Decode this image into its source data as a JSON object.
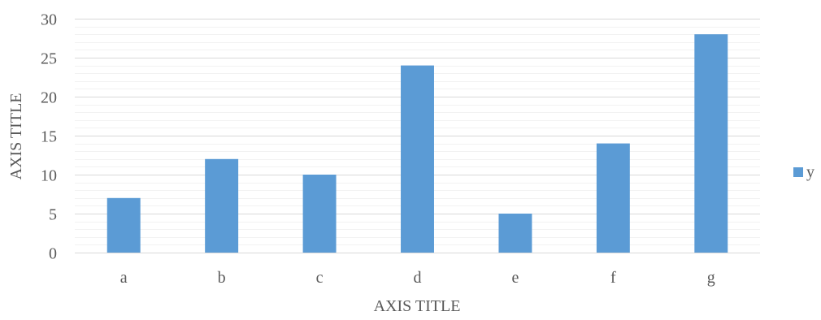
{
  "chart_data": {
    "type": "bar",
    "categories": [
      "a",
      "b",
      "c",
      "d",
      "e",
      "f",
      "g"
    ],
    "series": [
      {
        "name": "y",
        "values": [
          7,
          12,
          10,
          24,
          5,
          14,
          28
        ],
        "color": "#5b9bd5"
      }
    ],
    "title": "",
    "xlabel": "AXIS TITLE",
    "ylabel": "AXIS TITLE",
    "ylim": [
      0,
      30
    ],
    "yticks": [
      0,
      5,
      10,
      15,
      20,
      25,
      30
    ],
    "grid": {
      "major": true,
      "minor": true,
      "major_color": "#d9d9d9",
      "minor_color": "#f2f2f2"
    },
    "legend": {
      "position": "right"
    }
  }
}
